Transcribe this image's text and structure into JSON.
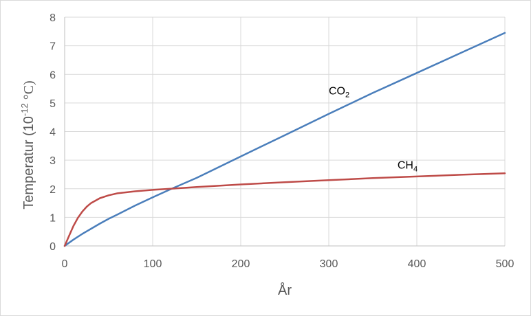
{
  "chart_data": {
    "type": "line",
    "xlabel": "År",
    "ylabel": {
      "main": "Temperatur (10",
      "exponent": "-12",
      "unit": " °C)"
    },
    "xlim": [
      0,
      500
    ],
    "ylim": [
      0,
      8
    ],
    "x_ticks": [
      0,
      100,
      200,
      300,
      400,
      500
    ],
    "y_ticks": [
      0,
      1,
      2,
      3,
      4,
      5,
      6,
      7,
      8
    ],
    "grid": true,
    "colors": {
      "grid": "#d9d9d9",
      "axis": "#bfbfbf",
      "co2": "#4a7ebb",
      "ch4": "#be4b48"
    },
    "series": [
      {
        "name": "CO2",
        "label_base": "CO",
        "label_sub": "2",
        "label_at": [
          300,
          5.3
        ],
        "x": [
          0,
          10,
          20,
          30,
          40,
          50,
          60,
          80,
          100,
          120,
          150,
          200,
          250,
          300,
          350,
          400,
          450,
          500
        ],
        "values": [
          0,
          0.22,
          0.42,
          0.6,
          0.78,
          0.95,
          1.1,
          1.41,
          1.7,
          1.98,
          2.38,
          3.13,
          3.87,
          4.62,
          5.35,
          6.05,
          6.75,
          7.45
        ]
      },
      {
        "name": "CH4",
        "label_base": "CH",
        "label_sub": "4",
        "label_at": [
          378,
          2.7
        ],
        "x": [
          0,
          5,
          10,
          15,
          20,
          25,
          30,
          40,
          50,
          60,
          80,
          100,
          120,
          150,
          200,
          250,
          300,
          350,
          400,
          450,
          500
        ],
        "values": [
          0,
          0.35,
          0.7,
          0.98,
          1.2,
          1.37,
          1.5,
          1.67,
          1.77,
          1.84,
          1.91,
          1.96,
          2.0,
          2.06,
          2.15,
          2.23,
          2.3,
          2.37,
          2.43,
          2.49,
          2.54
        ]
      }
    ]
  }
}
